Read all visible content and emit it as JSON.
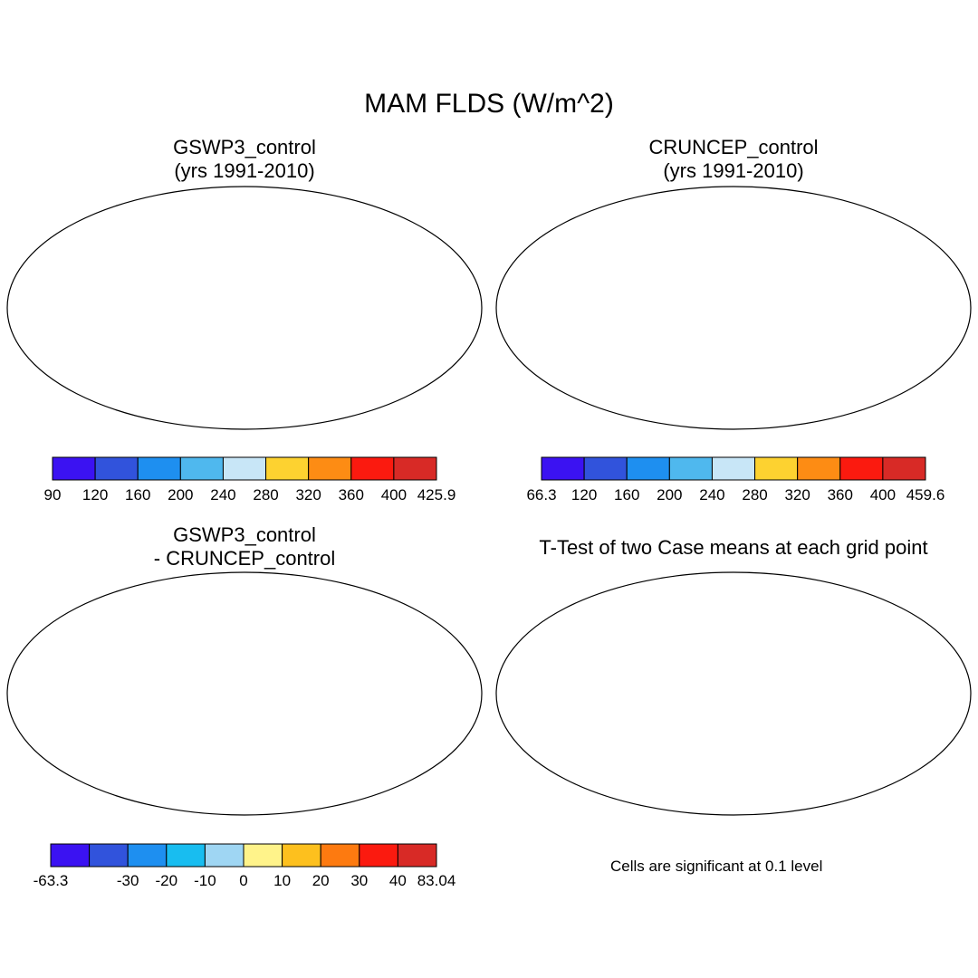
{
  "figure_title": "MAM FLDS (W/m^2)",
  "panels": [
    {
      "id": "gswp3",
      "title_line1": "GSWP3_control",
      "title_line2": "(yrs 1991-2010)",
      "colorbar": {
        "labels": [
          "90",
          "120",
          "160",
          "200",
          "240",
          "280",
          "320",
          "360",
          "400",
          "425.9"
        ],
        "colors": [
          "#3b12f2",
          "#3153dc",
          "#1e8ff0",
          "#4fb8ee",
          "#c8e6f7",
          "#fdd230",
          "#fd8c14",
          "#fb1a0f",
          "#d82a26"
        ]
      }
    },
    {
      "id": "cruncep",
      "title_line1": "CRUNCEP_control",
      "title_line2": "(yrs 1991-2010)",
      "colorbar": {
        "labels": [
          "66.3",
          "120",
          "160",
          "200",
          "240",
          "280",
          "320",
          "360",
          "400",
          "459.6"
        ],
        "colors": [
          "#3b12f2",
          "#3153dc",
          "#1e8ff0",
          "#4fb8ee",
          "#c8e6f7",
          "#fdd230",
          "#fd8c14",
          "#fb1a0f",
          "#d82a26"
        ]
      }
    },
    {
      "id": "diff",
      "title_line1": "GSWP3_control",
      "title_line2": "- CRUNCEP_control",
      "colorbar": {
        "labels": [
          "-63.3",
          "-30",
          "-20",
          "-10",
          "0",
          "10",
          "20",
          "30",
          "40",
          "83.04"
        ],
        "label_ticks": [
          0,
          2,
          3,
          4,
          5,
          6,
          7,
          8,
          9,
          10
        ],
        "colors": [
          "#3b12f2",
          "#3153dc",
          "#1e8ff0",
          "#18bdf0",
          "#9fd6f3",
          "#fff38a",
          "#fdc01e",
          "#fd7a10",
          "#fb1a0f",
          "#d82a26"
        ]
      }
    },
    {
      "id": "ttest",
      "title_line1": "T-Test of two Case means at each grid point",
      "note": "Cells are significant at 0.1 level",
      "color": "#ff0000"
    }
  ]
}
